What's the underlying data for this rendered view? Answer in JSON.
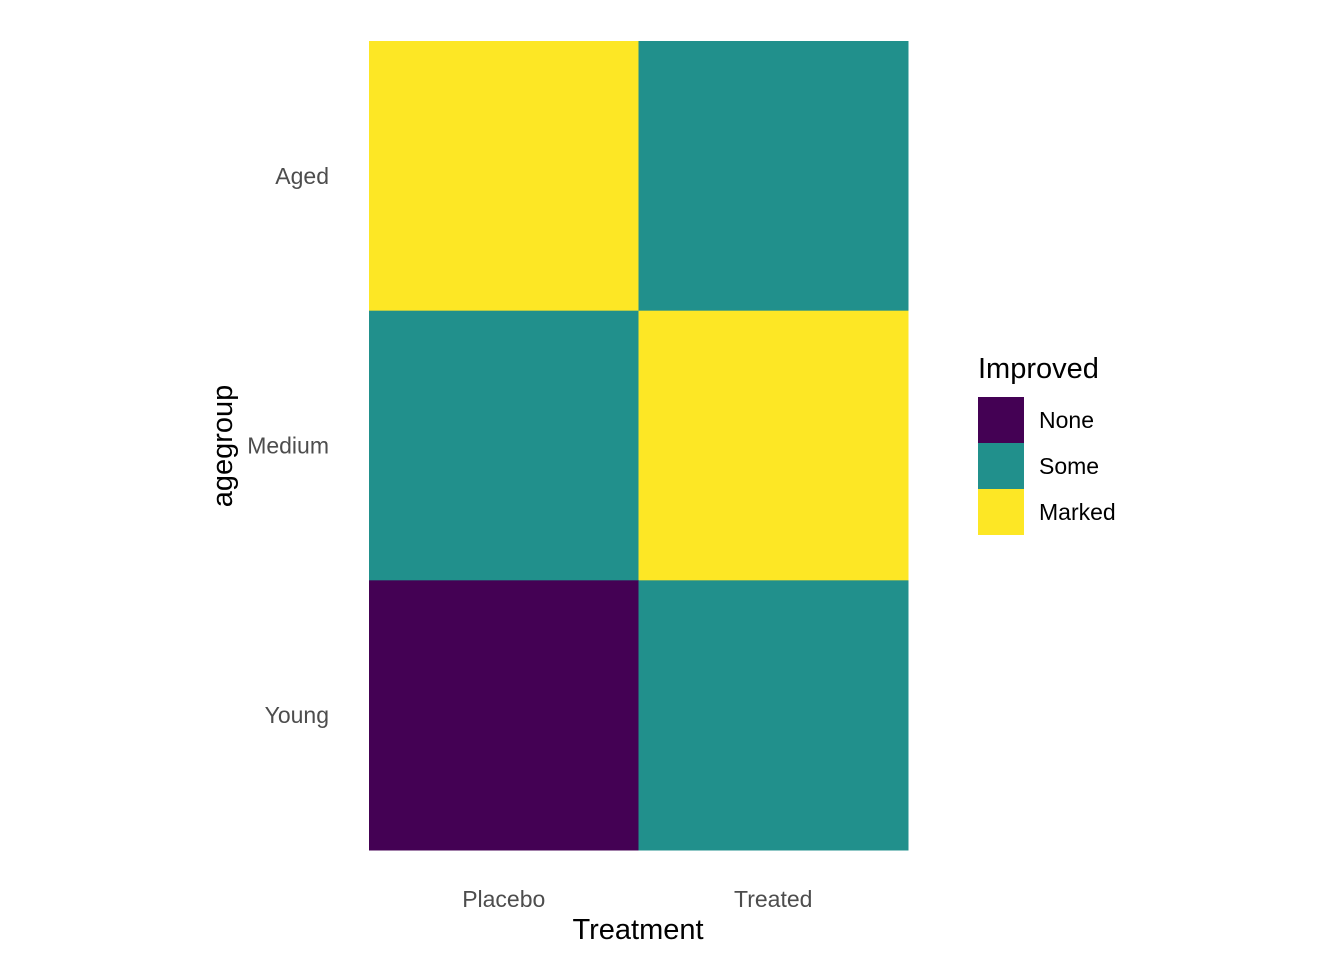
{
  "chart_data": {
    "type": "heatmap",
    "x_categories": [
      "Placebo",
      "Treated"
    ],
    "y_categories": [
      "Young",
      "Medium",
      "Aged"
    ],
    "cells": [
      {
        "x": "Placebo",
        "y": "Aged",
        "value": "Marked"
      },
      {
        "x": "Treated",
        "y": "Aged",
        "value": "Some"
      },
      {
        "x": "Placebo",
        "y": "Medium",
        "value": "Some"
      },
      {
        "x": "Treated",
        "y": "Medium",
        "value": "Marked"
      },
      {
        "x": "Placebo",
        "y": "Young",
        "value": "None"
      },
      {
        "x": "Treated",
        "y": "Young",
        "value": "Some"
      }
    ],
    "xlabel": "Treatment",
    "ylabel": "agegroup",
    "legend": {
      "title": "Improved",
      "position": "right",
      "levels": [
        {
          "label": "None",
          "color": "#440154"
        },
        {
          "label": "Some",
          "color": "#21908C"
        },
        {
          "label": "Marked",
          "color": "#FDE725"
        }
      ]
    },
    "grid": false
  }
}
